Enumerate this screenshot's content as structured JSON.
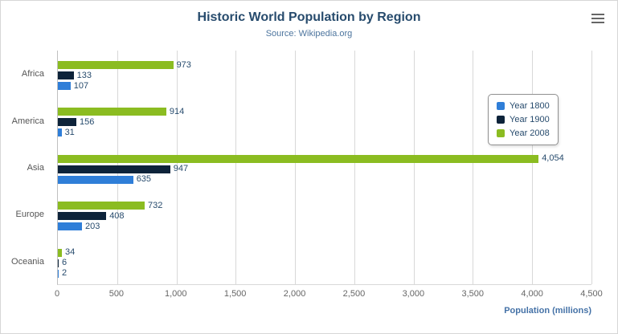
{
  "chart_data": {
    "type": "bar",
    "orientation": "horizontal",
    "title": "Historic World Population by Region",
    "subtitle": "Source: Wikipedia.org",
    "categories": [
      "Africa",
      "America",
      "Asia",
      "Europe",
      "Oceania"
    ],
    "series": [
      {
        "name": "Year 1800",
        "color": "#2f7ed8",
        "values": [
          107,
          31,
          635,
          203,
          2
        ]
      },
      {
        "name": "Year 1900",
        "color": "#0d233a",
        "values": [
          133,
          156,
          947,
          408,
          6
        ]
      },
      {
        "name": "Year 2008",
        "color": "#8bbc21",
        "values": [
          973,
          914,
          4054,
          732,
          34
        ]
      }
    ],
    "display_order_top_to_bottom": [
      2,
      1,
      0
    ],
    "xlabel": "Population (millions)",
    "xlim": [
      0,
      4500
    ],
    "x_ticks": [
      0,
      500,
      1000,
      1500,
      2000,
      2500,
      3000,
      3500,
      4000,
      4500
    ],
    "x_tick_labels": [
      "0",
      "500",
      "1,000",
      "1,500",
      "2,000",
      "2,500",
      "3,000",
      "3,500",
      "4,000",
      "4,500"
    ],
    "grid": true,
    "legend_position": "middle-right",
    "colors": {
      "title": "#274b6d",
      "subtitle": "#4d759e",
      "xlabel": "#4572a7",
      "gridline": "#d8d8d8",
      "axis_line": "#c0c0c0",
      "data_label": "#274b6d"
    }
  },
  "menu": {
    "icon": "hamburger-icon"
  }
}
